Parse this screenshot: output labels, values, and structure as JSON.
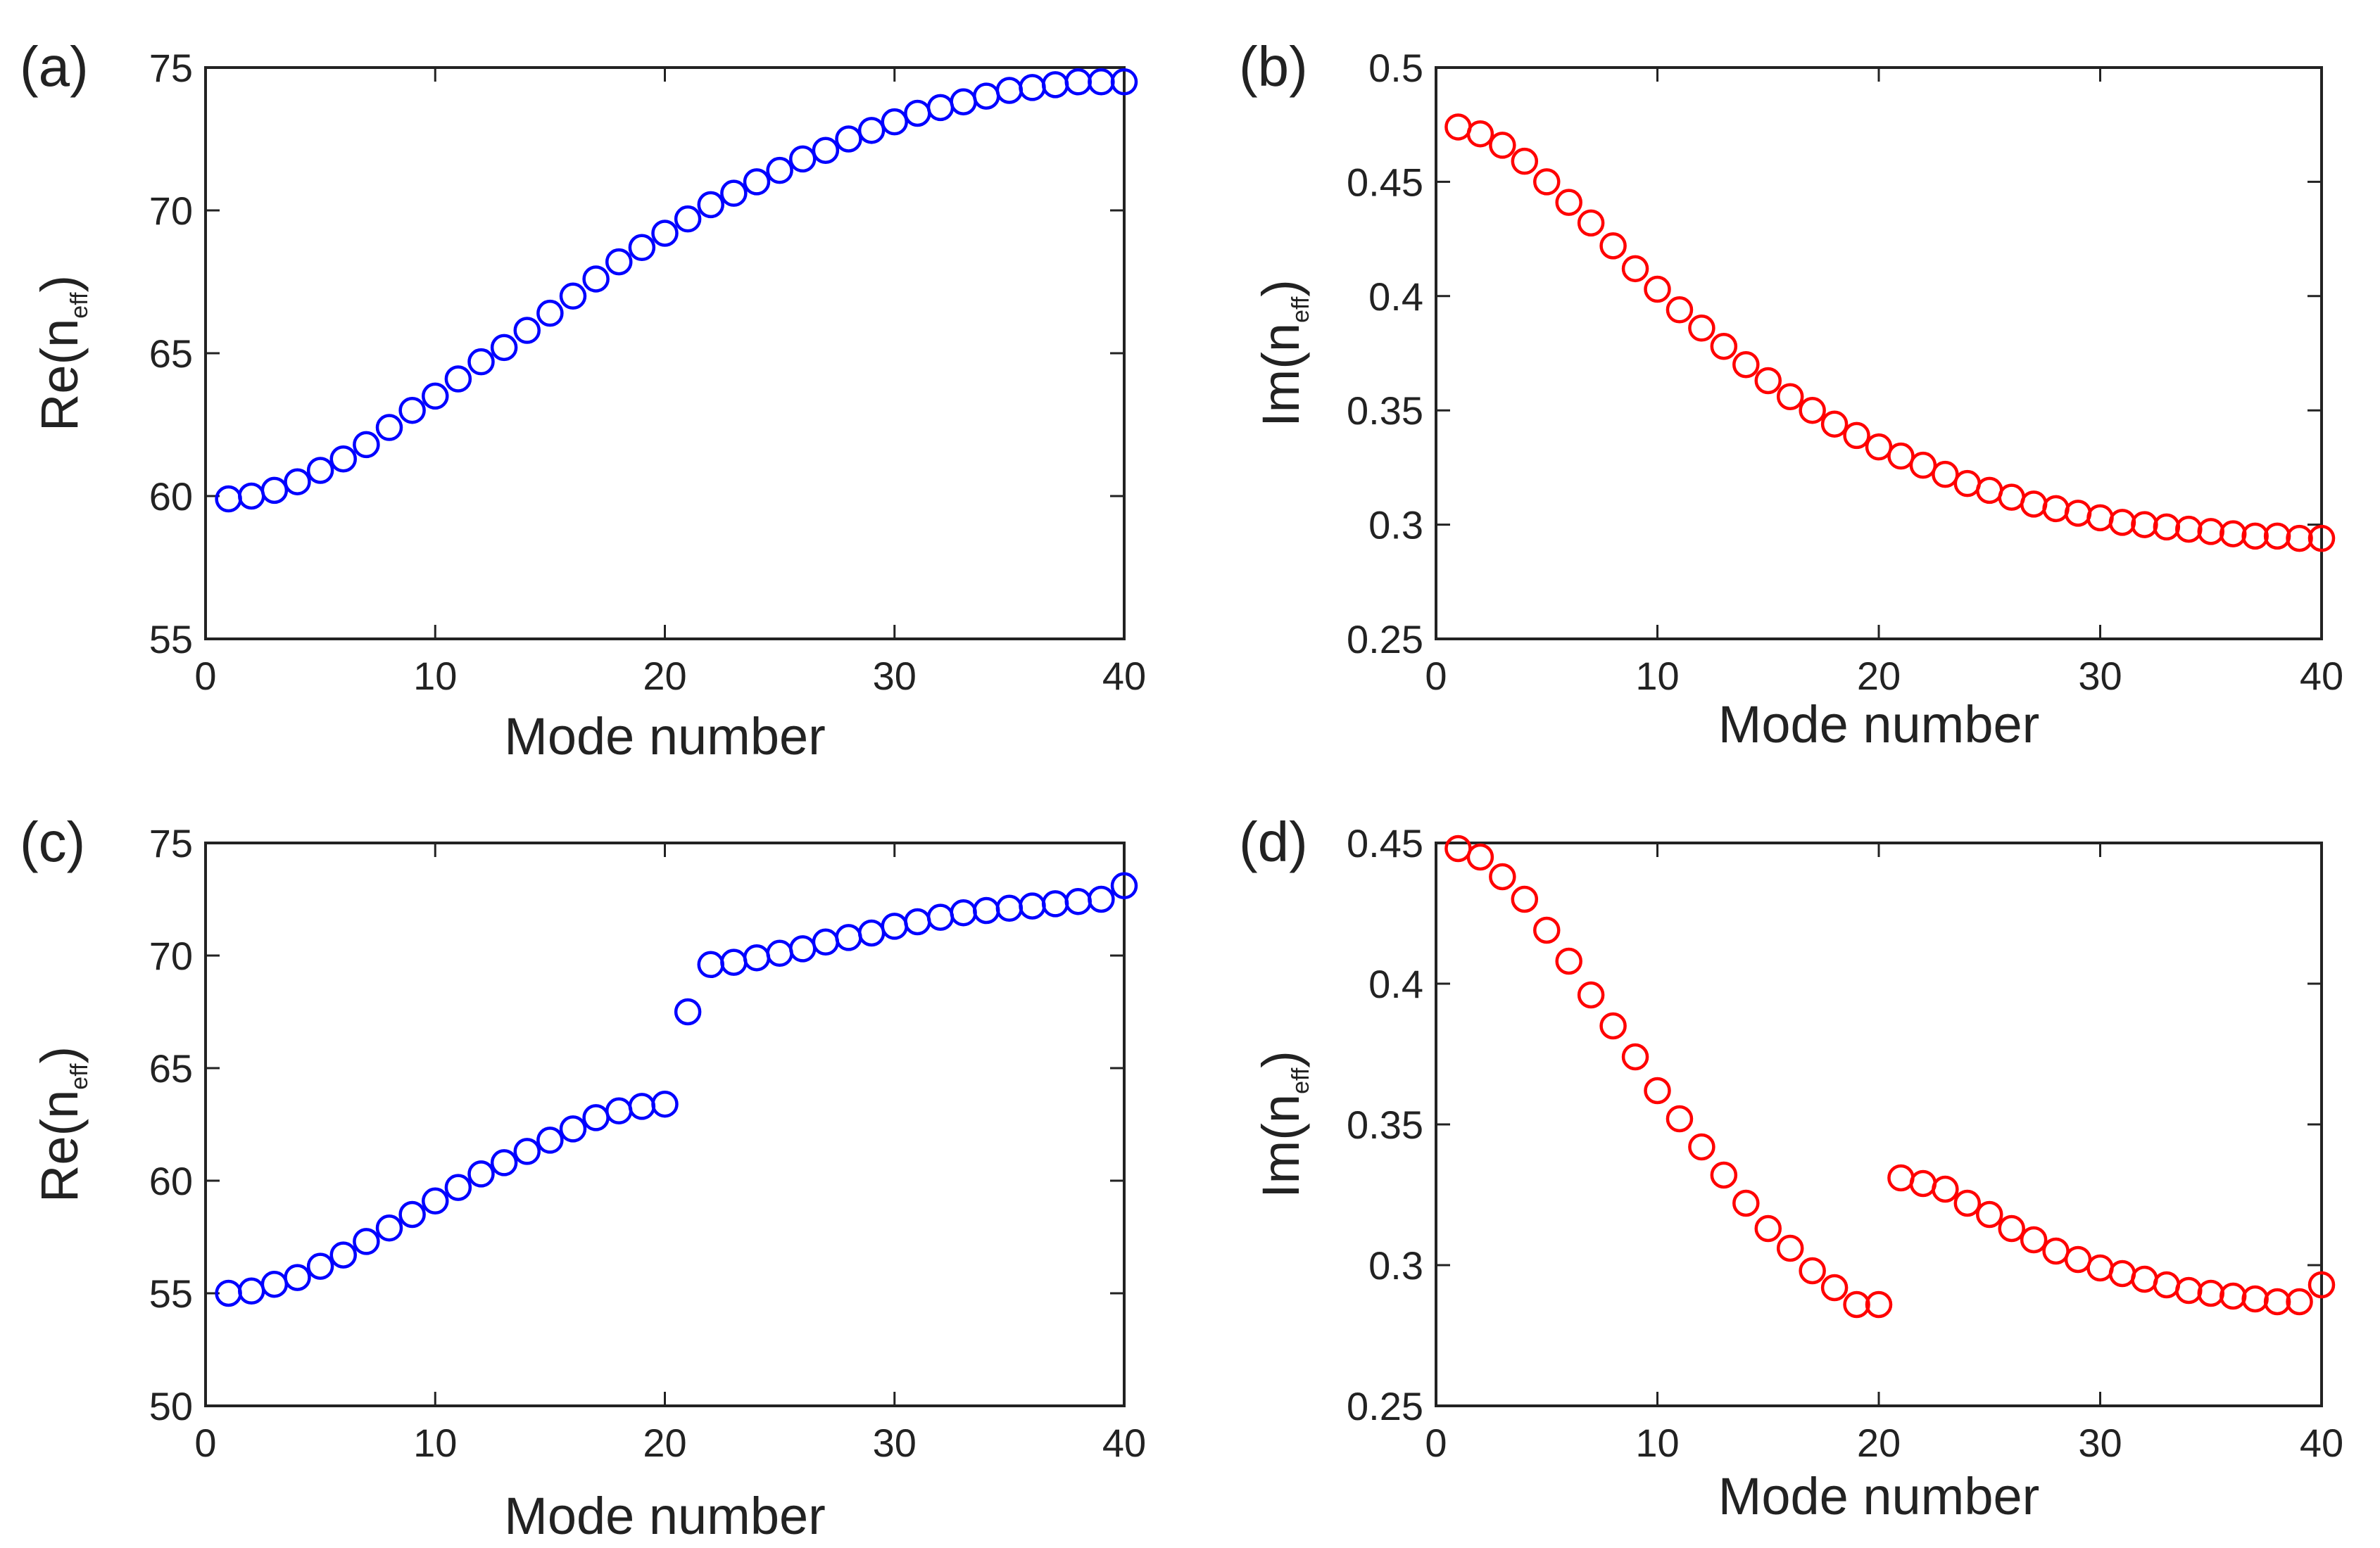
{
  "colors": {
    "blue": "#0000ff",
    "red": "#ff0000",
    "axis": "#222222"
  },
  "chart_data": [
    {
      "type": "scatter",
      "panel_label": "(a)",
      "xlabel": "Mode number",
      "ylabel_main": "Re(n",
      "ylabel_sub": "eff",
      "ylabel_close": ")",
      "xlim": [
        0,
        40
      ],
      "ylim": [
        55,
        75
      ],
      "xticks": [
        0,
        10,
        20,
        30,
        40
      ],
      "yticks": [
        55,
        60,
        65,
        70,
        75
      ],
      "xtick_labels": [
        "0",
        "10",
        "20",
        "30",
        "40"
      ],
      "ytick_labels": [
        "55",
        "60",
        "65",
        "70",
        "75"
      ],
      "marker": "open-circle",
      "color": "#0000ff",
      "series": [
        {
          "name": "Re(neff)",
          "x": [
            1,
            2,
            3,
            4,
            5,
            6,
            7,
            8,
            9,
            10,
            11,
            12,
            13,
            14,
            15,
            16,
            17,
            18,
            19,
            20,
            21,
            22,
            23,
            24,
            25,
            26,
            27,
            28,
            29,
            30,
            31,
            32,
            33,
            34,
            35,
            36,
            37,
            38,
            39,
            40
          ],
          "y": [
            59.9,
            60.0,
            60.2,
            60.5,
            60.9,
            61.3,
            61.8,
            62.4,
            63.0,
            63.5,
            64.1,
            64.7,
            65.2,
            65.8,
            66.4,
            67.0,
            67.6,
            68.2,
            68.7,
            69.2,
            69.7,
            70.2,
            70.6,
            71.0,
            71.4,
            71.8,
            72.1,
            72.5,
            72.8,
            73.1,
            73.4,
            73.6,
            73.8,
            74.0,
            74.2,
            74.3,
            74.4,
            74.5,
            74.5,
            74.5
          ]
        }
      ]
    },
    {
      "type": "scatter",
      "panel_label": "(b)",
      "xlabel": "Mode number",
      "ylabel_main": "Im(n",
      "ylabel_sub": "eff",
      "ylabel_close": ")",
      "xlim": [
        0,
        40
      ],
      "ylim": [
        0.25,
        0.5
      ],
      "xticks": [
        0,
        10,
        20,
        30,
        40
      ],
      "yticks": [
        0.25,
        0.3,
        0.35,
        0.4,
        0.45,
        0.5
      ],
      "xtick_labels": [
        "0",
        "10",
        "20",
        "30",
        "40"
      ],
      "ytick_labels": [
        "0.25",
        "0.3",
        "0.35",
        "0.4",
        "0.45",
        "0.5"
      ],
      "marker": "open-circle",
      "color": "#ff0000",
      "series": [
        {
          "name": "Im(neff)",
          "x": [
            1,
            2,
            3,
            4,
            5,
            6,
            7,
            8,
            9,
            10,
            11,
            12,
            13,
            14,
            15,
            16,
            17,
            18,
            19,
            20,
            21,
            22,
            23,
            24,
            25,
            26,
            27,
            28,
            29,
            30,
            31,
            32,
            33,
            34,
            35,
            36,
            37,
            38,
            39,
            40
          ],
          "y": [
            0.474,
            0.471,
            0.466,
            0.459,
            0.45,
            0.441,
            0.432,
            0.422,
            0.412,
            0.403,
            0.394,
            0.386,
            0.378,
            0.37,
            0.363,
            0.356,
            0.35,
            0.344,
            0.339,
            0.334,
            0.33,
            0.326,
            0.322,
            0.318,
            0.315,
            0.312,
            0.309,
            0.307,
            0.305,
            0.303,
            0.301,
            0.3,
            0.299,
            0.298,
            0.297,
            0.296,
            0.295,
            0.295,
            0.294,
            0.294
          ]
        }
      ]
    },
    {
      "type": "scatter",
      "panel_label": "(c)",
      "xlabel": "Mode number",
      "ylabel_main": "Re(n",
      "ylabel_sub": "eff",
      "ylabel_close": ")",
      "xlim": [
        0,
        40
      ],
      "ylim": [
        50,
        75
      ],
      "xticks": [
        0,
        10,
        20,
        30,
        40
      ],
      "yticks": [
        50,
        55,
        60,
        65,
        70,
        75
      ],
      "xtick_labels": [
        "0",
        "10",
        "20",
        "30",
        "40"
      ],
      "ytick_labels": [
        "50",
        "55",
        "60",
        "65",
        "70",
        "75"
      ],
      "marker": "open-circle",
      "color": "#0000ff",
      "series": [
        {
          "name": "Re(neff)",
          "x": [
            1,
            2,
            3,
            4,
            5,
            6,
            7,
            8,
            9,
            10,
            11,
            12,
            13,
            14,
            15,
            16,
            17,
            18,
            19,
            20,
            21,
            22,
            23,
            24,
            25,
            26,
            27,
            28,
            29,
            30,
            31,
            32,
            33,
            34,
            35,
            36,
            37,
            38,
            39,
            40
          ],
          "y": [
            55.0,
            55.1,
            55.4,
            55.7,
            56.2,
            56.7,
            57.3,
            57.9,
            58.5,
            59.1,
            59.7,
            60.3,
            60.8,
            61.3,
            61.8,
            62.3,
            62.8,
            63.1,
            63.3,
            63.4,
            67.5,
            69.6,
            69.7,
            69.9,
            70.1,
            70.3,
            70.6,
            70.8,
            71.0,
            71.3,
            71.5,
            71.7,
            71.9,
            72.0,
            72.1,
            72.2,
            72.3,
            72.4,
            72.5,
            73.1
          ]
        }
      ]
    },
    {
      "type": "scatter",
      "panel_label": "(d)",
      "xlabel": "Mode number",
      "ylabel_main": "Im(n",
      "ylabel_sub": "eff",
      "ylabel_close": ")",
      "xlim": [
        0,
        40
      ],
      "ylim": [
        0.25,
        0.45
      ],
      "xticks": [
        0,
        10,
        20,
        30,
        40
      ],
      "yticks": [
        0.25,
        0.3,
        0.35,
        0.4,
        0.45
      ],
      "xtick_labels": [
        "0",
        "10",
        "20",
        "30",
        "40"
      ],
      "ytick_labels": [
        "0.25",
        "0.3",
        "0.35",
        "0.4",
        "0.45"
      ],
      "marker": "open-circle",
      "color": "#ff0000",
      "series": [
        {
          "name": "Im(neff)",
          "x": [
            1,
            2,
            3,
            4,
            5,
            6,
            7,
            8,
            9,
            10,
            11,
            12,
            13,
            14,
            15,
            16,
            17,
            18,
            19,
            20,
            21,
            22,
            23,
            24,
            25,
            26,
            27,
            28,
            29,
            30,
            31,
            32,
            33,
            34,
            35,
            36,
            37,
            38,
            39,
            40
          ],
          "y": [
            0.448,
            0.445,
            0.438,
            0.43,
            0.419,
            0.408,
            0.396,
            0.385,
            0.374,
            0.362,
            0.352,
            0.342,
            0.332,
            0.322,
            0.313,
            0.306,
            0.298,
            0.292,
            0.286,
            0.286,
            0.331,
            0.329,
            0.327,
            0.322,
            0.318,
            0.313,
            0.309,
            0.305,
            0.302,
            0.299,
            0.297,
            0.295,
            0.293,
            0.291,
            0.29,
            0.289,
            0.288,
            0.287,
            0.287,
            0.293
          ]
        }
      ]
    }
  ]
}
